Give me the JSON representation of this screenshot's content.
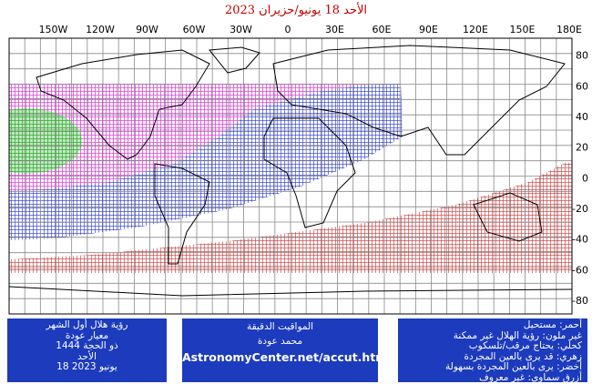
{
  "map": {
    "title": "الأحد 18 يونيو/حزيران 2023",
    "lon_labels": [
      "150W",
      "120W",
      "90W",
      "60W",
      "30W",
      "0",
      "30E",
      "60E",
      "90E",
      "120E",
      "150E",
      "180E"
    ],
    "lat_labels": [
      "80",
      "60",
      "40",
      "20",
      "0",
      "-20",
      "-40",
      "-60",
      "-80"
    ]
  },
  "footer": {
    "left": [
      "رؤية هلال أول الشهر",
      "معيار عودة",
      "ذو الحجة 1444",
      "الأحد",
      "18 يونيو 2023"
    ],
    "middle": [
      "المواقيت الدقيقة",
      "محمد عودة",
      "AstronomyCenter.net/accut.html"
    ],
    "legend": [
      "أحمر: مستحيل",
      "غير ملون: رؤية الهلال غير ممكنة",
      "كحلي: يحتاج مرقب/تلسكوب",
      "زهري: قد يرى بالعين المجردة",
      "أخضر: يرى بالعين المجردة بسهولة",
      "أزرق سماوي: غير معروف"
    ]
  }
}
